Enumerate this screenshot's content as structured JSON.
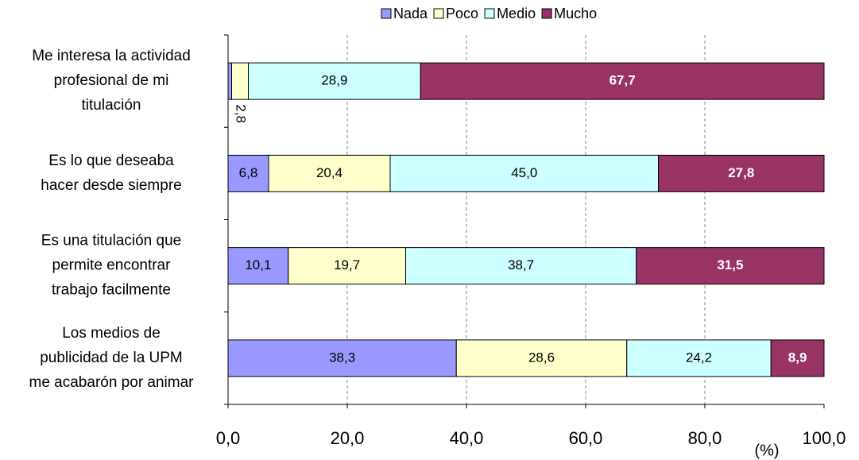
{
  "chart_data": {
    "type": "stacked_barh",
    "categories": [
      "Me interesa la actividad\nprofesional de mi\ntitulación",
      "Es lo que deseaba\nhacer desde siempre",
      "Es una titulación que\npermite encontrar\ntrabajo facilmente",
      "Los medios de\npublicidad de la UPM\nme acabarón por animar"
    ],
    "series": [
      {
        "name": "Nada",
        "color": "#9999ff",
        "values": [
          0.6,
          6.8,
          10.1,
          38.3
        ],
        "value_labels": [
          null,
          "6,8",
          "10,1",
          "38,3"
        ]
      },
      {
        "name": "Poco",
        "color": "#ffffcc",
        "values": [
          2.8,
          20.4,
          19.7,
          28.6
        ],
        "value_labels": [
          "2,8",
          "20,4",
          "19,7",
          "28,6"
        ]
      },
      {
        "name": "Medio",
        "color": "#ccffff",
        "values": [
          28.9,
          45.0,
          38.7,
          24.2
        ],
        "value_labels": [
          "28,9",
          "45,0",
          "38,7",
          "24,2"
        ]
      },
      {
        "name": "Mucho",
        "color": "#993366",
        "values": [
          67.7,
          27.8,
          31.5,
          8.9
        ],
        "value_labels": [
          "67,7",
          "27,8",
          "31,5",
          "8,9"
        ]
      }
    ],
    "xlabel": "(%)",
    "xlim": [
      0,
      100
    ],
    "xticks": [
      {
        "value": 0,
        "label": "0,0"
      },
      {
        "value": 20,
        "label": "20,0"
      },
      {
        "value": 40,
        "label": "40,0"
      },
      {
        "value": 60,
        "label": "60,0"
      },
      {
        "value": 80,
        "label": "80,0"
      },
      {
        "value": 100,
        "label": "100,0"
      }
    ],
    "grid": true,
    "legend": "top"
  }
}
